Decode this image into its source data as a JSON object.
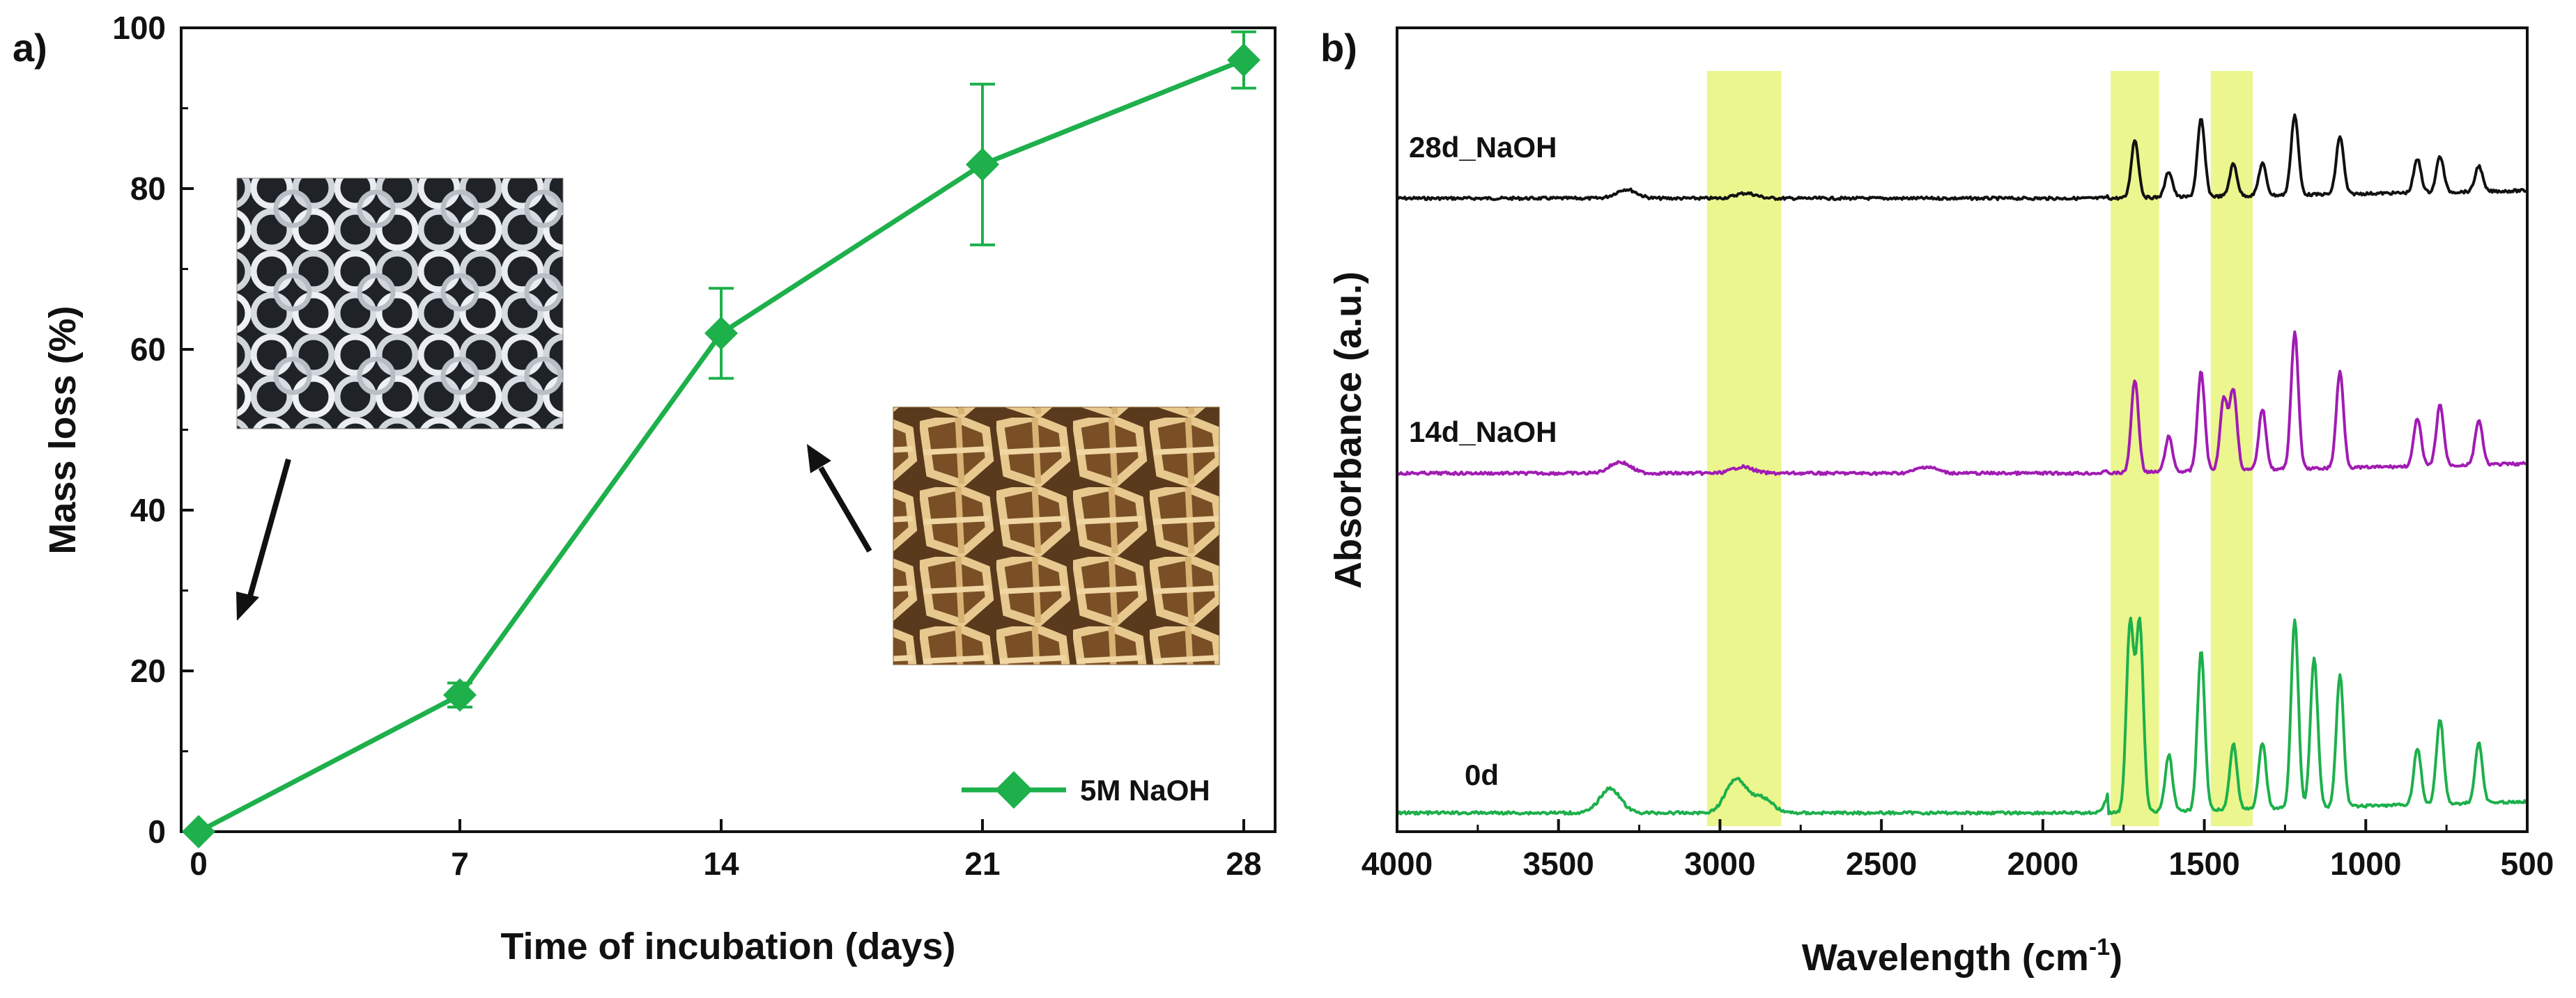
{
  "colors": {
    "green": "#1db04b",
    "black": "#111111",
    "purple": "#a11bb3",
    "highlight": "#e8f57a",
    "insetTransparent": "#9ea4aa",
    "insetDegraded": "#d8ae6a"
  },
  "chart_data": [
    {
      "type": "line",
      "panel_label": "a)",
      "title": "",
      "xlabel": "Time of incubation (days)",
      "ylabel": "Mass loss (%)",
      "xlim": [
        0,
        28
      ],
      "ylim": [
        0,
        100
      ],
      "xticks": [
        "0",
        "7",
        "14",
        "21",
        "28"
      ],
      "yticks": [
        "0",
        "20",
        "40",
        "60",
        "80",
        "100"
      ],
      "x": [
        0,
        7,
        14,
        21,
        28
      ],
      "series": [
        {
          "name": "5M NaOH",
          "color": "#1db04b",
          "marker": "diamond",
          "values": [
            0,
            17,
            62,
            83,
            96
          ],
          "error": [
            0.5,
            1.5,
            5.6,
            10,
            3.5
          ]
        }
      ],
      "legend": {
        "position": "bottom-right",
        "label": "5M NaOH"
      },
      "insets": [
        {
          "name": "transparent-mesh-photo",
          "description": "scaffold before incubation",
          "arrow": "points toward day 0"
        },
        {
          "name": "degraded-mesh-photo",
          "description": "scaffold after incubation",
          "arrow": "points toward day 14"
        }
      ]
    },
    {
      "type": "line",
      "panel_label": "b)",
      "title": "",
      "xlabel": "Wavelength (cm",
      "xlabel_sup": "-1",
      "xlabel_end": ")",
      "ylabel": "Absorbance (a.u.)",
      "xlim": [
        4000,
        500
      ],
      "xticks": [
        "4000",
        "3500",
        "3000",
        "2500",
        "2000",
        "1500",
        "1000",
        "500"
      ],
      "highlight_bands": [
        [
          3040,
          2810
        ],
        [
          1790,
          1640
        ],
        [
          1480,
          1350
        ]
      ],
      "series": [
        {
          "name": "28d_NaOH",
          "label": "28d_NaOH",
          "color": "#111111",
          "peaks": [
            [
              3290,
              0.07
            ],
            [
              2920,
              0.04
            ],
            [
              1715,
              0.45
            ],
            [
              1610,
              0.2
            ],
            [
              1510,
              0.6
            ],
            [
              1410,
              0.25
            ],
            [
              1320,
              0.25
            ],
            [
              1220,
              0.62
            ],
            [
              1080,
              0.45
            ],
            [
              840,
              0.26
            ],
            [
              770,
              0.28
            ],
            [
              650,
              0.2
            ]
          ]
        },
        {
          "name": "14d_NaOH",
          "label": "14d_NaOH",
          "color": "#a11bb3",
          "peaks": [
            [
              3310,
              0.07
            ],
            [
              2930,
              0.04
            ],
            [
              2360,
              0.04
            ],
            [
              1715,
              0.58
            ],
            [
              1610,
              0.22
            ],
            [
              1510,
              0.62
            ],
            [
              1440,
              0.45
            ],
            [
              1410,
              0.5
            ],
            [
              1320,
              0.38
            ],
            [
              1220,
              0.85
            ],
            [
              1080,
              0.6
            ],
            [
              840,
              0.3
            ],
            [
              770,
              0.38
            ],
            [
              650,
              0.28
            ]
          ]
        },
        {
          "name": "0d",
          "label": "0d",
          "color": "#1db04b",
          "peaks": [
            [
              3340,
              0.13
            ],
            [
              2950,
              0.18
            ],
            [
              2870,
              0.08
            ],
            [
              1730,
              1.0
            ],
            [
              1700,
              1.0
            ],
            [
              1610,
              0.3
            ],
            [
              1510,
              0.85
            ],
            [
              1410,
              0.35
            ],
            [
              1320,
              0.35
            ],
            [
              1220,
              1.0
            ],
            [
              1160,
              0.8
            ],
            [
              1080,
              0.7
            ],
            [
              840,
              0.3
            ],
            [
              770,
              0.45
            ],
            [
              650,
              0.32
            ]
          ]
        }
      ]
    }
  ]
}
